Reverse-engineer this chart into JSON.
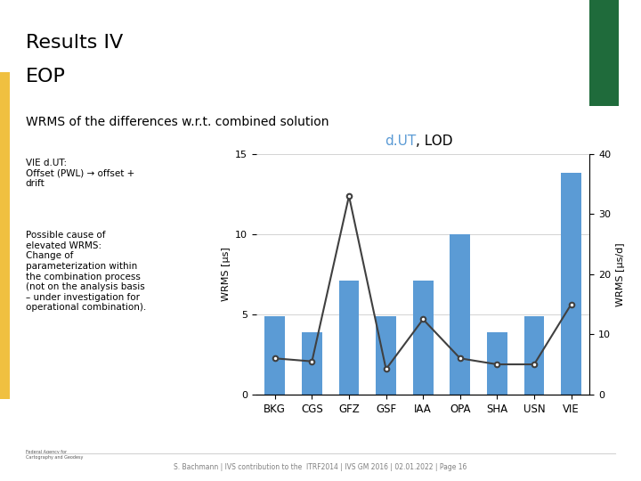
{
  "categories": [
    "BKG",
    "CGS",
    "GFZ",
    "GSF",
    "IAA",
    "OPA",
    "SHA",
    "USN",
    "VIE"
  ],
  "bar_values": [
    4.9,
    3.9,
    7.1,
    4.9,
    7.1,
    10.0,
    3.9,
    4.9,
    13.8
  ],
  "line_values": [
    6.0,
    5.5,
    33.0,
    4.2,
    12.5,
    6.0,
    5.0,
    5.0,
    15.0
  ],
  "bar_color": "#5B9BD5",
  "line_color": "#404040",
  "left_ylabel": "WRMS [μs]",
  "right_ylabel": "WRMS [μs/d]",
  "left_ylim": [
    0,
    15
  ],
  "right_ylim": [
    0,
    40
  ],
  "left_yticks": [
    0,
    5,
    10,
    15
  ],
  "right_yticks": [
    0,
    10,
    20,
    30,
    40
  ],
  "title_line1": "Results IV",
  "title_line2": "EOP",
  "subtitle": "WRMS of the differences w.r.t. combined solution",
  "green_rect_color": "#1F6B3B",
  "annotation_text": "S. Bachmann | IVS contribution to the  ITRF2014 | IVS GM 2016 | 02.01.2022 | Page 16",
  "text_left": "VIE d.UT:\nOffset (PWL) → offset +\ndrift",
  "text_left2": "Possible cause of\nelevated WRMS:\nChange of\nparameterization within\nthe combination process\n(not on the analysis basis\n– under investigation for\noperational combination).",
  "dut_color": "#5B9BD5"
}
